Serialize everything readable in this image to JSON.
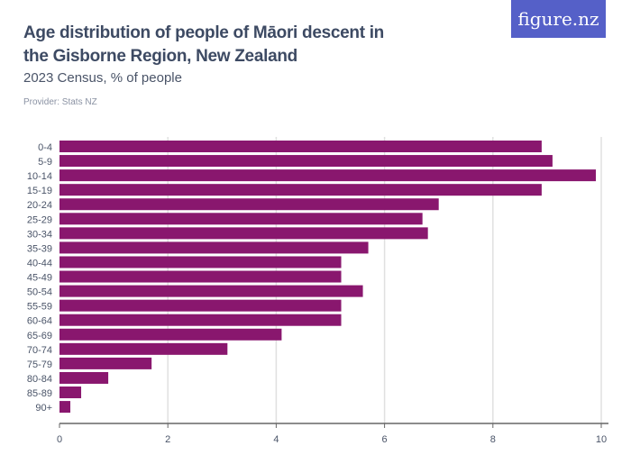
{
  "header": {
    "title": "Age distribution of people of Māori descent in the Gisborne Region, New Zealand",
    "subtitle": "2023 Census, % of people",
    "provider": "Provider: Stats NZ",
    "logo": "figure.nz"
  },
  "colors": {
    "bar": "#89176e",
    "logo": "#5560c8",
    "grid": "#e0e0e0",
    "axis": "#666666"
  },
  "chart_data": {
    "type": "bar",
    "orientation": "horizontal",
    "title": "Age distribution of people of Māori descent in the Gisborne Region, New Zealand",
    "subtitle": "2023 Census, % of people",
    "categories": [
      "0-4",
      "5-9",
      "10-14",
      "15-19",
      "20-24",
      "25-29",
      "30-34",
      "35-39",
      "40-44",
      "45-49",
      "50-54",
      "55-59",
      "60-64",
      "65-69",
      "70-74",
      "75-79",
      "80-84",
      "85-89",
      "90+"
    ],
    "values": [
      8.9,
      9.1,
      9.9,
      8.9,
      7.0,
      6.7,
      6.8,
      5.7,
      5.2,
      5.2,
      5.6,
      5.2,
      5.2,
      4.1,
      3.1,
      1.7,
      0.9,
      0.4,
      0.2
    ],
    "xlim": [
      0,
      10
    ],
    "xticks": [
      0,
      2,
      4,
      6,
      8,
      10
    ],
    "grid": true,
    "xlabel": "",
    "ylabel": ""
  }
}
